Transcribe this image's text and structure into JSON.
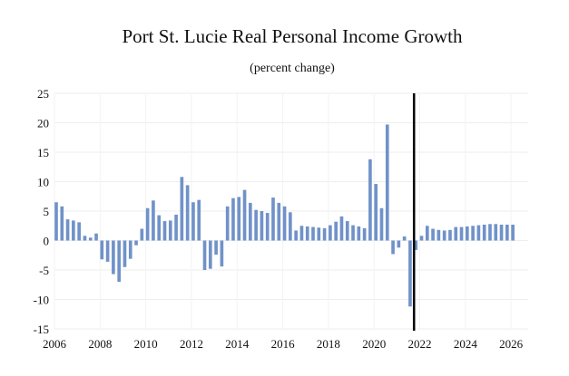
{
  "chart_data": {
    "type": "bar",
    "title": "Port St. Lucie Real Personal Income Growth",
    "subtitle": "(percent change)",
    "xlabel": "",
    "ylabel": "",
    "ylim": [
      -15,
      25
    ],
    "yticks": [
      25,
      20,
      15,
      10,
      5,
      0,
      -5,
      -10,
      -15
    ],
    "xlim": [
      2006,
      2026.75
    ],
    "xticks": [
      2006,
      2008,
      2010,
      2012,
      2014,
      2016,
      2018,
      2020,
      2022,
      2024,
      2026
    ],
    "grid": true,
    "bar_color": "#7092c8",
    "forecast_divider_x": 2021.75,
    "forecast_divider_color": "#000000",
    "start": 2006.0,
    "step": 0.25,
    "values": [
      6.5,
      5.8,
      3.6,
      3.4,
      3.1,
      0.8,
      0.5,
      1.2,
      -3.2,
      -3.6,
      -5.7,
      -7.0,
      -4.5,
      -3.1,
      -0.8,
      2.0,
      5.5,
      6.8,
      4.3,
      3.3,
      3.4,
      4.4,
      10.8,
      9.4,
      6.5,
      6.9,
      -5.0,
      -4.8,
      -2.4,
      -4.4,
      5.8,
      7.2,
      7.4,
      8.6,
      6.4,
      5.2,
      5.0,
      4.7,
      7.3,
      6.4,
      5.8,
      4.8,
      1.7,
      2.5,
      2.4,
      2.3,
      2.2,
      2.1,
      2.6,
      3.2,
      4.1,
      3.3,
      2.6,
      2.4,
      2.1,
      13.8,
      9.6,
      5.5,
      19.7,
      -2.3,
      -1.2,
      0.7,
      -11.2,
      -1.6,
      0.8,
      2.5,
      2.0,
      1.8,
      1.7,
      1.8,
      2.3,
      2.3,
      2.4,
      2.5,
      2.6,
      2.7,
      2.8,
      2.8,
      2.7,
      2.7,
      2.7
    ]
  }
}
